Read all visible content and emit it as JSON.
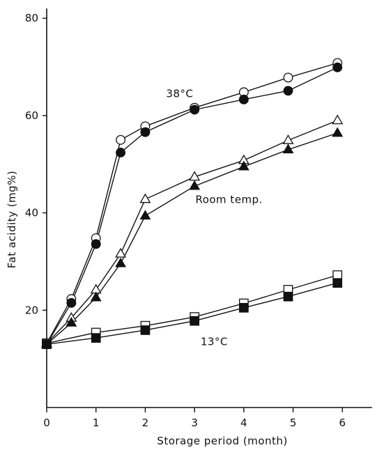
{
  "chart_data": {
    "type": "line",
    "xlabel": "Storage period (month)",
    "ylabel": "Fat acidity (mg%)",
    "xlim": [
      0,
      6.6
    ],
    "ylim": [
      0,
      82
    ],
    "x_ticks": [
      0,
      1,
      2,
      3,
      4,
      5,
      6
    ],
    "y_ticks": [
      20,
      40,
      60,
      80
    ],
    "x_tick_labels": [
      "0",
      "1",
      "2",
      "3",
      "4",
      "5",
      "6"
    ],
    "y_tick_labels": [
      "20",
      "40",
      "60",
      "80"
    ],
    "grid": false,
    "annotations": [
      {
        "text": "38°C",
        "x": 2.7,
        "y": 63.8
      },
      {
        "text": "Room temp.",
        "x": 3.7,
        "y": 42.0
      },
      {
        "text": "13°C",
        "x": 3.4,
        "y": 12.8
      }
    ],
    "series": [
      {
        "marker": "circle-open",
        "x": [
          0,
          0.5,
          1,
          1.5,
          2,
          3,
          4,
          4.9,
          5.9
        ],
        "y": [
          13.2,
          22.3,
          34.8,
          55.0,
          57.8,
          61.6,
          64.8,
          67.8,
          70.8
        ]
      },
      {
        "marker": "circle-filled",
        "x": [
          0,
          0.5,
          1,
          1.5,
          2,
          3,
          4,
          4.9,
          5.9
        ],
        "y": [
          13.0,
          21.5,
          33.6,
          52.4,
          56.6,
          61.2,
          63.3,
          65.1,
          69.9
        ]
      },
      {
        "marker": "triangle-open",
        "x": [
          0,
          0.5,
          1,
          1.5,
          2,
          3,
          4,
          4.9,
          5.9
        ],
        "y": [
          13.2,
          18.4,
          24.2,
          31.6,
          42.8,
          47.4,
          50.8,
          54.9,
          59.0
        ]
      },
      {
        "marker": "triangle-filled",
        "x": [
          0,
          0.5,
          1,
          1.5,
          2,
          3,
          4,
          4.9,
          5.9
        ],
        "y": [
          13.0,
          17.4,
          22.6,
          29.6,
          39.4,
          45.5,
          49.5,
          53.0,
          56.4
        ]
      },
      {
        "marker": "square-open",
        "x": [
          0,
          1,
          2,
          3,
          4,
          4.9,
          5.9
        ],
        "y": [
          13.2,
          15.4,
          16.8,
          18.6,
          21.4,
          24.2,
          27.2
        ]
      },
      {
        "marker": "square-filled",
        "x": [
          0,
          1,
          2,
          3,
          4,
          4.9,
          5.9
        ],
        "y": [
          13.0,
          14.3,
          15.9,
          17.8,
          20.5,
          22.8,
          25.6
        ]
      }
    ]
  }
}
